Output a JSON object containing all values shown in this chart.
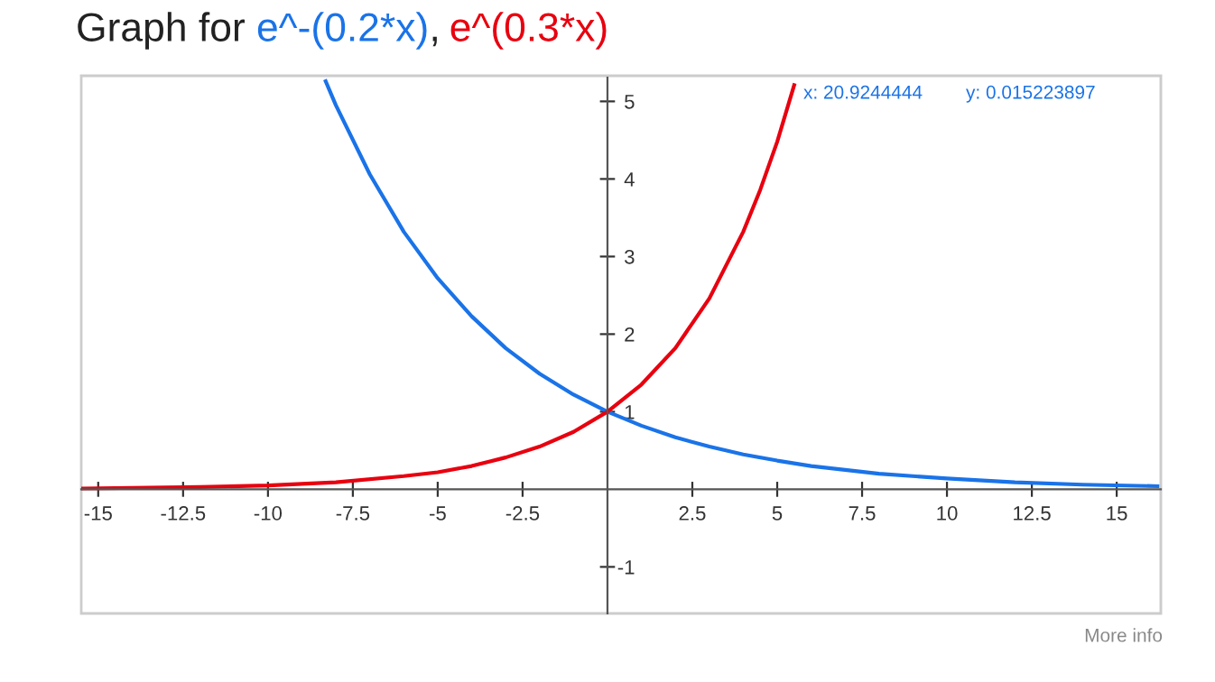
{
  "chart_data": {
    "type": "line",
    "title": "Graph for",
    "series": [
      {
        "name": "e^-(0.2*x)",
        "color": "#1a73e8",
        "x": [
          -8.3,
          -8,
          -7,
          -6,
          -5,
          -4,
          -3,
          -2,
          -1,
          0,
          1,
          2,
          3,
          4,
          5,
          6,
          7,
          8,
          10,
          12,
          14,
          16.2
        ],
        "values": [
          5.26,
          4.95,
          4.06,
          3.32,
          2.72,
          2.23,
          1.82,
          1.49,
          1.22,
          1,
          0.82,
          0.67,
          0.55,
          0.45,
          0.37,
          0.3,
          0.25,
          0.2,
          0.14,
          0.09,
          0.06,
          0.04
        ]
      },
      {
        "name": "e^(0.3*x)",
        "color": "#e8000f",
        "x": [
          -15.5,
          -12,
          -10,
          -8,
          -6,
          -5,
          -4,
          -3,
          -2,
          -1,
          0,
          1,
          2,
          3,
          4,
          4.5,
          5,
          5.5
        ],
        "values": [
          0.01,
          0.03,
          0.05,
          0.09,
          0.17,
          0.22,
          0.3,
          0.41,
          0.55,
          0.74,
          1,
          1.35,
          1.82,
          2.46,
          3.32,
          3.86,
          4.48,
          5.21
        ]
      }
    ],
    "xlim": [
      -15.5,
      16.3
    ],
    "ylim": [
      -1.6,
      5.33
    ],
    "xticks": [
      -15,
      -12.5,
      -10,
      -7.5,
      -5,
      -2.5,
      2.5,
      5,
      7.5,
      10,
      12.5,
      15
    ],
    "yticks": [
      -1,
      1,
      2,
      3,
      4,
      5
    ],
    "grid": false,
    "legend": false,
    "marker": "none",
    "line_style": "solid",
    "annotations": [
      ",",
      "x: 20.9244444",
      "y: 0.015223897",
      "More info"
    ]
  }
}
